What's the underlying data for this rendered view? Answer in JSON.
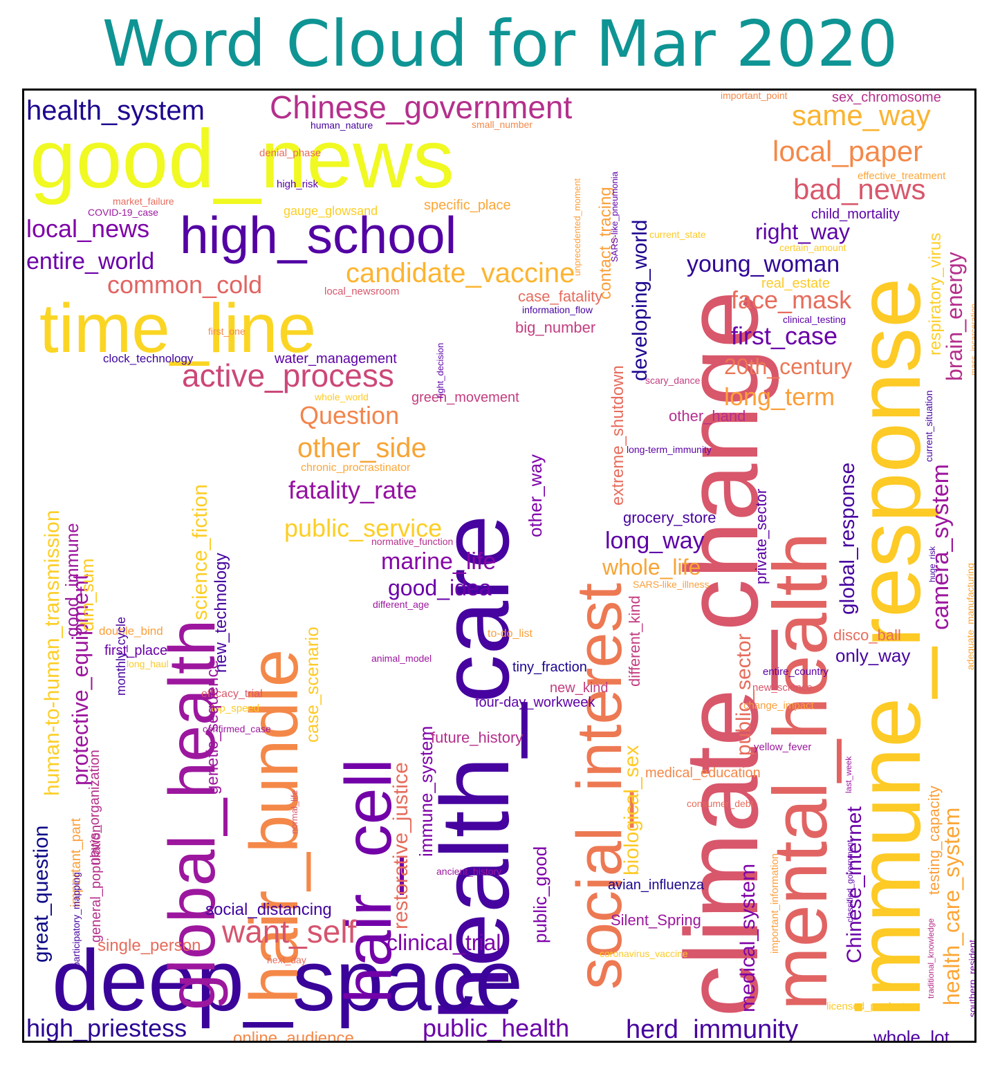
{
  "chart_data": {
    "type": "wordcloud",
    "title": "Word Cloud for Mar 2020",
    "palette": [
      "#0d0887",
      "#46039f",
      "#7201a8",
      "#9c179e",
      "#bd3786",
      "#d8576b",
      "#ed7953",
      "#fb9f3a",
      "#fdca26",
      "#f0f921"
    ],
    "words": [
      {
        "text": "good_news",
        "weight": 100,
        "color": "#f0f921"
      },
      {
        "text": "climate_change",
        "weight": 98,
        "color": "#d8576b"
      },
      {
        "text": "health_care",
        "weight": 97,
        "color": "#46039f"
      },
      {
        "text": "deep_space",
        "weight": 80,
        "color": "#3a049a"
      },
      {
        "text": "immune_response",
        "weight": 90,
        "color": "#fdca26"
      },
      {
        "text": "mental_health",
        "weight": 82,
        "color": "#e16462"
      },
      {
        "text": "social_interest",
        "weight": 78,
        "color": "#ed7953"
      },
      {
        "text": "global_health",
        "weight": 76,
        "color": "#9c179e"
      },
      {
        "text": "hair_bundle",
        "weight": 74,
        "color": "#f48849"
      },
      {
        "text": "hair_cell",
        "weight": 72,
        "color": "#7201a8"
      },
      {
        "text": "time_line",
        "weight": 70,
        "color": "#fbd524"
      },
      {
        "text": "high_school",
        "weight": 58,
        "color": "#5302a3"
      },
      {
        "text": "Chinese_government",
        "weight": 30,
        "color": "#b52f8c"
      },
      {
        "text": "health_system",
        "weight": 26,
        "color": "#1c068f"
      },
      {
        "text": "same_way",
        "weight": 30,
        "color": "#fbb32f"
      },
      {
        "text": "local_paper",
        "weight": 28,
        "color": "#f48849"
      },
      {
        "text": "bad_news",
        "weight": 30,
        "color": "#d8576b"
      },
      {
        "text": "local_news",
        "weight": 26,
        "color": "#7e03a8"
      },
      {
        "text": "entire_world",
        "weight": 24,
        "color": "#6a00a8"
      },
      {
        "text": "candidate_vaccine",
        "weight": 30,
        "color": "#fdb42f"
      },
      {
        "text": "common_cold",
        "weight": 24,
        "color": "#e16462"
      },
      {
        "text": "right_way",
        "weight": 24,
        "color": "#5c01a6"
      },
      {
        "text": "young_woman",
        "weight": 26,
        "color": "#2e0595"
      },
      {
        "text": "face_mask",
        "weight": 26,
        "color": "#e66c5c"
      },
      {
        "text": "first_case",
        "weight": 26,
        "color": "#6a00a8"
      },
      {
        "text": "20th_century",
        "weight": 24,
        "color": "#eb7655"
      },
      {
        "text": "long_term",
        "weight": 24,
        "color": "#fb9f3a"
      },
      {
        "text": "active_process",
        "weight": 32,
        "color": "#cc4778"
      },
      {
        "text": "Question",
        "weight": 26,
        "color": "#f2844b"
      },
      {
        "text": "other_side",
        "weight": 28,
        "color": "#f7a435"
      },
      {
        "text": "fatality_rate",
        "weight": 26,
        "color": "#9511a1"
      },
      {
        "text": "public_service",
        "weight": 26,
        "color": "#fcce25"
      },
      {
        "text": "marine_life",
        "weight": 26,
        "color": "#8606a6"
      },
      {
        "text": "good_idea",
        "weight": 24,
        "color": "#6a00a8"
      },
      {
        "text": "want_self",
        "weight": 30,
        "color": "#d5546e"
      },
      {
        "text": "clinical_trial",
        "weight": 24,
        "color": "#7e03a8"
      },
      {
        "text": "public_health",
        "weight": 28,
        "color": "#6a00a8"
      },
      {
        "text": "herd_immunity",
        "weight": 28,
        "color": "#46039f"
      },
      {
        "text": "high_priestess",
        "weight": 28,
        "color": "#2a0593"
      },
      {
        "text": "online_audience",
        "weight": 18,
        "color": "#f48849"
      },
      {
        "text": "whole_lot",
        "weight": 18,
        "color": "#4c02a1"
      },
      {
        "text": "social_distancing",
        "weight": 18,
        "color": "#41049d"
      },
      {
        "text": "single_person",
        "weight": 18,
        "color": "#e66c5c"
      },
      {
        "text": "long_way",
        "weight": 24,
        "color": "#5c01a6"
      },
      {
        "text": "whole_life",
        "weight": 22,
        "color": "#f7a435"
      },
      {
        "text": "specific_place",
        "weight": 14,
        "color": "#fca636"
      },
      {
        "text": "gauge_glowsand",
        "weight": 12,
        "color": "#fcce25"
      },
      {
        "text": "local_newsroom",
        "weight": 11,
        "color": "#d8576b"
      },
      {
        "text": "case_fatality",
        "weight": 16,
        "color": "#e66c5c"
      },
      {
        "text": "information_flow",
        "weight": 10,
        "color": "#46039f"
      },
      {
        "text": "big_number",
        "weight": 16,
        "color": "#c33d80"
      },
      {
        "text": "water_management",
        "weight": 14,
        "color": "#5c01a6"
      },
      {
        "text": "clock_technology",
        "weight": 12,
        "color": "#3e049c"
      },
      {
        "text": "first_one",
        "weight": 10,
        "color": "#f48849"
      },
      {
        "text": "green_movement",
        "weight": 14,
        "color": "#c33d80"
      },
      {
        "text": "whole_world",
        "weight": 10,
        "color": "#fdca26"
      },
      {
        "text": "chronic_procrastinator",
        "weight": 11,
        "color": "#fca636"
      },
      {
        "text": "normative_function",
        "weight": 10,
        "color": "#b52f8c"
      },
      {
        "text": "different_age",
        "weight": 10,
        "color": "#9c179e"
      },
      {
        "text": "double_bind",
        "weight": 12,
        "color": "#fb9f3a"
      },
      {
        "text": "first_place",
        "weight": 14,
        "color": "#6a00a8"
      },
      {
        "text": "long_haul",
        "weight": 10,
        "color": "#fdca26"
      },
      {
        "text": "efficacy_trial",
        "weight": 11,
        "color": "#d8576b"
      },
      {
        "text": "top_speed",
        "weight": 11,
        "color": "#fdca26"
      },
      {
        "text": "confirmed_case",
        "weight": 10,
        "color": "#9c179e"
      },
      {
        "text": "animal_model",
        "weight": 10,
        "color": "#9c179e"
      },
      {
        "text": "to-do_list",
        "weight": 11,
        "color": "#fb9f3a"
      },
      {
        "text": "tiny_fraction",
        "weight": 14,
        "color": "#1c068f"
      },
      {
        "text": "new_kind",
        "weight": 14,
        "color": "#c33d80"
      },
      {
        "text": "four-day_workweek",
        "weight": 14,
        "color": "#5c01a6"
      },
      {
        "text": "future_history",
        "weight": 16,
        "color": "#b52f8c"
      },
      {
        "text": "grocery_store",
        "weight": 16,
        "color": "#46039f"
      },
      {
        "text": "SARS-like_illness",
        "weight": 10,
        "color": "#fb9f3a"
      },
      {
        "text": "disco_ball",
        "weight": 16,
        "color": "#e66c5c"
      },
      {
        "text": "only_way",
        "weight": 18,
        "color": "#46039f"
      },
      {
        "text": "entire_country",
        "weight": 11,
        "color": "#5c01a6"
      },
      {
        "text": "new_science",
        "weight": 10,
        "color": "#d8576b"
      },
      {
        "text": "change_impact",
        "weight": 11,
        "color": "#fb9f3a"
      },
      {
        "text": "yellow_fever",
        "weight": 11,
        "color": "#9c179e"
      },
      {
        "text": "medical_education",
        "weight": 14,
        "color": "#f48849"
      },
      {
        "text": "consumer_debt",
        "weight": 10,
        "color": "#e66c5c"
      },
      {
        "text": "avian_influenza",
        "weight": 14,
        "color": "#1c068f"
      },
      {
        "text": "Silent_Spring",
        "weight": 16,
        "color": "#9c179e"
      },
      {
        "text": "coronavirus_vaccine",
        "weight": 10,
        "color": "#fdca26"
      },
      {
        "text": "licensed_product",
        "weight": 10,
        "color": "#fdca26"
      },
      {
        "text": "next_day",
        "weight": 10,
        "color": "#e66c5c"
      },
      {
        "text": "ancient_history",
        "weight": 10,
        "color": "#9c179e"
      },
      {
        "text": "human_nature",
        "weight": 10,
        "color": "#46039f"
      },
      {
        "text": "small_number",
        "weight": 10,
        "color": "#f48849"
      },
      {
        "text": "denial_phase",
        "weight": 11,
        "color": "#e66c5c"
      },
      {
        "text": "high_risk",
        "weight": 11,
        "color": "#5c01a6"
      },
      {
        "text": "market_failure",
        "weight": 10,
        "color": "#e66c5c"
      },
      {
        "text": "COVID-19_case",
        "weight": 10,
        "color": "#9c179e"
      },
      {
        "text": "important_point",
        "weight": 10,
        "color": "#f48849"
      },
      {
        "text": "sex_chromosome",
        "weight": 14,
        "color": "#b52f8c"
      },
      {
        "text": "effective_treatment",
        "weight": 11,
        "color": "#fca636"
      },
      {
        "text": "child_mortality",
        "weight": 14,
        "color": "#5c01a6"
      },
      {
        "text": "current_state",
        "weight": 10,
        "color": "#fdca26"
      },
      {
        "text": "certain_amount",
        "weight": 10,
        "color": "#fdca26"
      },
      {
        "text": "real_estate",
        "weight": 14,
        "color": "#fdca26"
      },
      {
        "text": "clinical_testing",
        "weight": 10,
        "color": "#5c01a6"
      },
      {
        "text": "scary_dance",
        "weight": 10,
        "color": "#c33d80"
      },
      {
        "text": "other_hand",
        "weight": 16,
        "color": "#b52f8c"
      },
      {
        "text": "long-term_immunity",
        "weight": 10,
        "color": "#5c01a6"
      },
      {
        "text": "developing_world",
        "weight": 24,
        "color": "#1c068f"
      },
      {
        "text": "contact_tracing",
        "weight": 16,
        "color": "#fb9f3a"
      },
      {
        "text": "unprecedented_moment",
        "weight": 10,
        "color": "#fb9f3a"
      },
      {
        "text": "SARS-like_pneumonia",
        "weight": 10,
        "color": "#5c01a6"
      },
      {
        "text": "extreme_shutdown",
        "weight": 18,
        "color": "#e66c5c"
      },
      {
        "text": "other_way",
        "weight": 18,
        "color": "#7e03a8"
      },
      {
        "text": "new_technology",
        "weight": 18,
        "color": "#46039f"
      },
      {
        "text": "science_fiction",
        "weight": 24,
        "color": "#fcce25"
      },
      {
        "text": "genetic_sequence",
        "weight": 18,
        "color": "#9c179e"
      },
      {
        "text": "case_scenario",
        "weight": 20,
        "color": "#fdca26"
      },
      {
        "text": "restorative_justice",
        "weight": 22,
        "color": "#e66c5c"
      },
      {
        "text": "immune_system",
        "weight": 20,
        "color": "#7e03a8"
      },
      {
        "text": "public_good",
        "weight": 18,
        "color": "#7e03a8"
      },
      {
        "text": "different_kind",
        "weight": 16,
        "color": "#c33d80"
      },
      {
        "text": "biological_sex",
        "weight": 22,
        "color": "#fdca26"
      },
      {
        "text": "public_sector",
        "weight": 22,
        "color": "#e66c5c"
      },
      {
        "text": "private_sector",
        "weight": 18,
        "color": "#5c01a6"
      },
      {
        "text": "medical_system",
        "weight": 24,
        "color": "#7e03a8"
      },
      {
        "text": "important_information",
        "weight": 12,
        "color": "#fb9f3a"
      },
      {
        "text": "global_response",
        "weight": 24,
        "color": "#46039f"
      },
      {
        "text": "Chinese_internet",
        "weight": 24,
        "color": "#6a00a8"
      },
      {
        "text": "classified_government",
        "weight": 10,
        "color": "#5c01a6"
      },
      {
        "text": "last_week",
        "weight": 10,
        "color": "#9c179e"
      },
      {
        "text": "camera_system",
        "weight": 26,
        "color": "#9c179e"
      },
      {
        "text": "health_care_system",
        "weight": 26,
        "color": "#fca636"
      },
      {
        "text": "testing_capacity",
        "weight": 18,
        "color": "#fb9f3a"
      },
      {
        "text": "respiratory_virus",
        "weight": 18,
        "color": "#fcce25"
      },
      {
        "text": "brain_energy",
        "weight": 24,
        "color": "#b52f8c"
      },
      {
        "text": "mass_incarceration",
        "weight": 10,
        "color": "#fb9f3a"
      },
      {
        "text": "current_situation",
        "weight": 10,
        "color": "#46039f"
      },
      {
        "text": "huge_risk",
        "weight": 10,
        "color": "#46039f"
      },
      {
        "text": "adequate_manufacturing",
        "weight": 10,
        "color": "#fca636"
      },
      {
        "text": "traditional_knowledge",
        "weight": 10,
        "color": "#b52f8c"
      },
      {
        "text": "southern_resident",
        "weight": 12,
        "color": "#7e03a8"
      },
      {
        "text": "resident_killer",
        "weight": 14,
        "color": "#5c01a6"
      },
      {
        "text": "human-to-human_transmission",
        "weight": 24,
        "color": "#fcce25"
      },
      {
        "text": "protective_equipment",
        "weight": 24,
        "color": "#9c179e"
      },
      {
        "text": "good_immune",
        "weight": 20,
        "color": "#9c179e"
      },
      {
        "text": "dim_sum",
        "weight": 20,
        "color": "#fdca26"
      },
      {
        "text": "great_question",
        "weight": 22,
        "color": "#0d0887"
      },
      {
        "text": "important_part",
        "weight": 16,
        "color": "#fb9f3a"
      },
      {
        "text": "general_population",
        "weight": 16,
        "color": "#b52f8c"
      },
      {
        "text": "news_organization",
        "weight": 16,
        "color": "#b52f8c"
      },
      {
        "text": "monthly_cycle",
        "weight": 14,
        "color": "#46039f"
      },
      {
        "text": "participatory_mapping",
        "weight": 10,
        "color": "#46039f"
      },
      {
        "text": "right_decision",
        "weight": 10,
        "color": "#5c01a6"
      },
      {
        "text": "normal_life",
        "weight": 10,
        "color": "#d8576b"
      }
    ]
  }
}
